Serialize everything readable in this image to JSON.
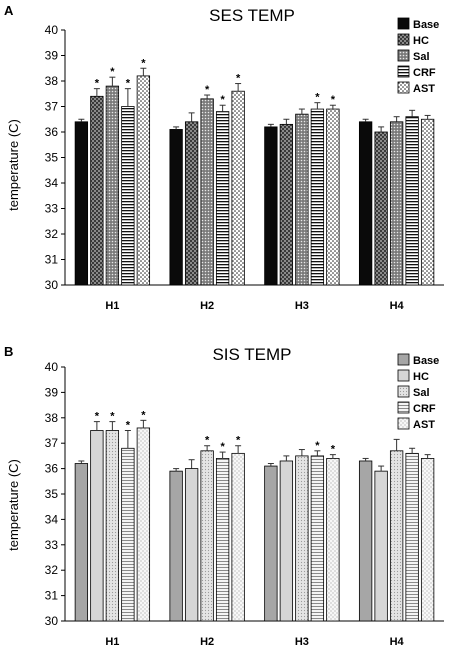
{
  "chart_data": [
    {
      "type": "bar",
      "panel_label": "A",
      "title": "SES TEMP",
      "ylabel": "temperature (C)",
      "xlabel": "",
      "ylim": [
        30,
        40
      ],
      "yticks": [
        "30",
        "31",
        "32",
        "33",
        "34",
        "35",
        "36",
        "37",
        "38",
        "39",
        "40"
      ],
      "categories": [
        "H1",
        "H2",
        "H3",
        "H4"
      ],
      "legend_position": "top-right",
      "series": [
        {
          "name": "Base",
          "pattern": "solid-black",
          "values": [
            36.4,
            36.1,
            36.2,
            36.4
          ],
          "errors": [
            0.1,
            0.1,
            0.1,
            0.1
          ],
          "sig": [
            false,
            false,
            false,
            false
          ]
        },
        {
          "name": "HC",
          "pattern": "dark-check",
          "values": [
            37.4,
            36.4,
            36.3,
            36.0
          ],
          "errors": [
            0.3,
            0.35,
            0.2,
            0.2
          ],
          "sig": [
            true,
            false,
            false,
            false
          ]
        },
        {
          "name": "Sal",
          "pattern": "dots",
          "values": [
            37.8,
            37.3,
            36.7,
            36.4
          ],
          "errors": [
            0.35,
            0.15,
            0.2,
            0.2
          ],
          "sig": [
            true,
            true,
            false,
            false
          ]
        },
        {
          "name": "CRF",
          "pattern": "hlines",
          "values": [
            37.0,
            36.8,
            36.9,
            36.6
          ],
          "errors": [
            0.7,
            0.25,
            0.25,
            0.25
          ],
          "sig": [
            true,
            true,
            true,
            false
          ]
        },
        {
          "name": "AST",
          "pattern": "dots-sparse",
          "values": [
            38.2,
            37.6,
            36.9,
            36.5
          ],
          "errors": [
            0.3,
            0.3,
            0.15,
            0.15
          ],
          "sig": [
            true,
            true,
            true,
            false
          ]
        }
      ]
    },
    {
      "type": "bar",
      "panel_label": "B",
      "title": "SIS TEMP",
      "ylabel": "temperature (C)",
      "xlabel": "",
      "ylim": [
        30,
        40
      ],
      "yticks": [
        "30",
        "31",
        "32",
        "33",
        "34",
        "35",
        "36",
        "37",
        "38",
        "39",
        "40"
      ],
      "categories": [
        "H1",
        "H2",
        "H3",
        "H4"
      ],
      "legend_position": "top-right",
      "series": [
        {
          "name": "Base",
          "pattern": "solid-gray",
          "values": [
            36.2,
            35.9,
            36.1,
            36.3
          ],
          "errors": [
            0.1,
            0.1,
            0.1,
            0.1
          ],
          "sig": [
            false,
            false,
            false,
            false
          ]
        },
        {
          "name": "HC",
          "pattern": "light-gray",
          "values": [
            37.5,
            36.0,
            36.3,
            35.9
          ],
          "errors": [
            0.35,
            0.35,
            0.2,
            0.2
          ],
          "sig": [
            true,
            false,
            false,
            false
          ]
        },
        {
          "name": "Sal",
          "pattern": "light-dots",
          "values": [
            37.5,
            36.7,
            36.5,
            36.7
          ],
          "errors": [
            0.35,
            0.2,
            0.25,
            0.45
          ],
          "sig": [
            true,
            true,
            false,
            false
          ]
        },
        {
          "name": "CRF",
          "pattern": "light-hlines",
          "values": [
            36.8,
            36.4,
            36.5,
            36.6
          ],
          "errors": [
            0.7,
            0.25,
            0.2,
            0.2
          ],
          "sig": [
            true,
            true,
            true,
            false
          ]
        },
        {
          "name": "AST",
          "pattern": "light-dots-sparse",
          "values": [
            37.6,
            36.6,
            36.4,
            36.4
          ],
          "errors": [
            0.3,
            0.3,
            0.15,
            0.15
          ],
          "sig": [
            true,
            true,
            true,
            false
          ]
        }
      ]
    }
  ],
  "annotations": {
    "significance_mark": "*"
  }
}
